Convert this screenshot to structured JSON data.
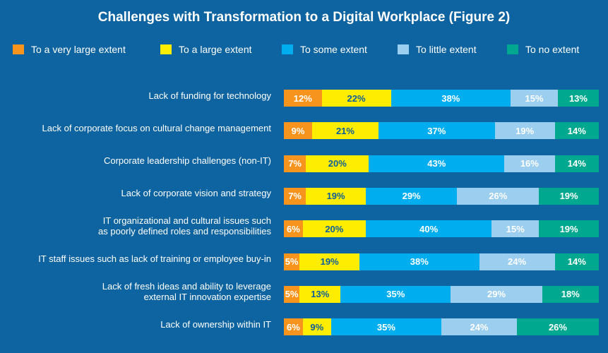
{
  "chart_data": {
    "type": "bar",
    "orientation": "horizontal",
    "stacked": true,
    "title": "Challenges with Transformation to a Digital Workplace (Figure 2)",
    "xlabel": "",
    "ylabel": "",
    "xlim": [
      0,
      100
    ],
    "unit": "%",
    "categories": [
      [
        "Lack of funding for technology"
      ],
      [
        "Lack of corporate focus on cultural change management"
      ],
      [
        "Corporate leadership challenges (non-IT)"
      ],
      [
        "Lack of corporate vision and strategy"
      ],
      [
        "IT organizational and cultural issues such",
        "as poorly defined roles and responsibilities"
      ],
      [
        "IT staff issues such as lack of training or employee buy-in"
      ],
      [
        "Lack of fresh ideas and ability to leverage",
        "external IT innovation expertise"
      ],
      [
        "Lack of ownership within IT"
      ]
    ],
    "series": [
      {
        "name": "To a very large extent",
        "color": "#f7941d",
        "text_color": "#ffffff",
        "values": [
          12,
          9,
          7,
          7,
          6,
          5,
          5,
          6
        ]
      },
      {
        "name": "To a large extent",
        "color": "#ffed00",
        "text_color": "#0b5e99",
        "values": [
          22,
          21,
          20,
          19,
          20,
          19,
          13,
          9
        ]
      },
      {
        "name": "To some extent",
        "color": "#00aeef",
        "text_color": "#ffffff",
        "values": [
          38,
          37,
          43,
          29,
          40,
          38,
          35,
          35
        ]
      },
      {
        "name": "To little extent",
        "color": "#9ccef0",
        "text_color": "#ffffff",
        "values": [
          15,
          19,
          16,
          26,
          15,
          24,
          29,
          24
        ]
      },
      {
        "name": "To no extent",
        "color": "#00a88f",
        "text_color": "#ffffff",
        "values": [
          13,
          14,
          14,
          19,
          19,
          14,
          18,
          26
        ]
      }
    ],
    "legend": "top"
  }
}
